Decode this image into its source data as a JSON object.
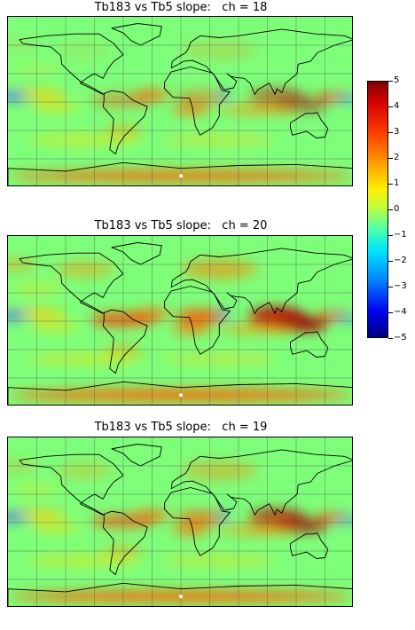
{
  "panels": [
    {
      "title": "Tb183 vs Tb5 slope:   ch = 18",
      "intensity": 0.55
    },
    {
      "title": "Tb183 vs Tb5 slope:   ch = 20",
      "intensity": 1.0
    },
    {
      "title": "Tb183 vs Tb5 slope:   ch = 19",
      "intensity": 0.78
    }
  ],
  "colorbar": {
    "ticks": [
      "5",
      "4",
      "3",
      "2",
      "1",
      "0",
      "−1",
      "−2",
      "−3",
      "−4",
      "−5"
    ],
    "range": [
      -5,
      5
    ]
  },
  "colors": {
    "background_field": "#7dff7a",
    "hot": "#b00000",
    "warm": "#ff6a00",
    "cold": "#0040ff",
    "coastline": "#000000",
    "grid": "#555555"
  }
}
